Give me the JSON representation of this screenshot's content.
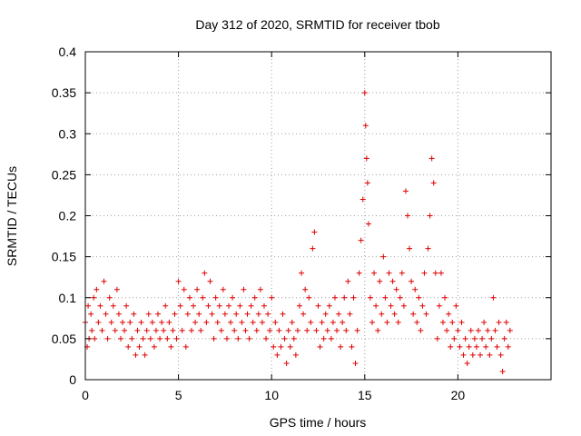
{
  "chart_data": {
    "type": "scatter",
    "title": "Day 312 of 2020, SRMTID for receiver tbob",
    "xlabel": "GPS time / hours",
    "ylabel": "SRMTID / TECUs",
    "xlim": [
      0,
      25
    ],
    "ylim": [
      0,
      0.4
    ],
    "xticks": [
      0,
      5,
      10,
      15,
      20
    ],
    "yticks": [
      0,
      0.05,
      0.1,
      0.15,
      0.2,
      0.25,
      0.3,
      0.35,
      0.4
    ],
    "xtick_labels": [
      "0",
      "5",
      "10",
      "15",
      "20"
    ],
    "ytick_labels": [
      "0",
      "0.05",
      "0.1",
      "0.15",
      "0.2",
      "0.25",
      "0.3",
      "0.35",
      "0.4"
    ],
    "grid": true,
    "marker": "+",
    "color": "#e00000",
    "series": [
      {
        "name": "SRMTID",
        "points": [
          [
            0.0,
            0.07
          ],
          [
            0.1,
            0.04
          ],
          [
            0.15,
            0.09
          ],
          [
            0.2,
            0.05
          ],
          [
            0.3,
            0.08
          ],
          [
            0.35,
            0.06
          ],
          [
            0.45,
            0.1
          ],
          [
            0.5,
            0.05
          ],
          [
            0.6,
            0.11
          ],
          [
            0.7,
            0.07
          ],
          [
            0.8,
            0.09
          ],
          [
            0.9,
            0.06
          ],
          [
            1.0,
            0.12
          ],
          [
            1.1,
            0.08
          ],
          [
            1.2,
            0.05
          ],
          [
            1.3,
            0.1
          ],
          [
            1.4,
            0.07
          ],
          [
            1.5,
            0.09
          ],
          [
            1.6,
            0.06
          ],
          [
            1.7,
            0.11
          ],
          [
            1.8,
            0.08
          ],
          [
            1.9,
            0.05
          ],
          [
            2.0,
            0.07
          ],
          [
            2.1,
            0.06
          ],
          [
            2.2,
            0.09
          ],
          [
            2.3,
            0.04
          ],
          [
            2.4,
            0.07
          ],
          [
            2.5,
            0.05
          ],
          [
            2.6,
            0.08
          ],
          [
            2.7,
            0.03
          ],
          [
            2.8,
            0.06
          ],
          [
            2.9,
            0.04
          ],
          [
            3.0,
            0.07
          ],
          [
            3.1,
            0.05
          ],
          [
            3.2,
            0.03
          ],
          [
            3.3,
            0.06
          ],
          [
            3.4,
            0.08
          ],
          [
            3.5,
            0.05
          ],
          [
            3.6,
            0.07
          ],
          [
            3.7,
            0.04
          ],
          [
            3.8,
            0.06
          ],
          [
            3.9,
            0.08
          ],
          [
            4.0,
            0.05
          ],
          [
            4.1,
            0.07
          ],
          [
            4.2,
            0.06
          ],
          [
            4.3,
            0.09
          ],
          [
            4.4,
            0.05
          ],
          [
            4.5,
            0.07
          ],
          [
            4.6,
            0.04
          ],
          [
            4.7,
            0.06
          ],
          [
            4.8,
            0.08
          ],
          [
            4.9,
            0.05
          ],
          [
            5.0,
            0.12
          ],
          [
            5.1,
            0.09
          ],
          [
            5.2,
            0.06
          ],
          [
            5.3,
            0.11
          ],
          [
            5.4,
            0.04
          ],
          [
            5.5,
            0.08
          ],
          [
            5.6,
            0.1
          ],
          [
            5.7,
            0.06
          ],
          [
            5.8,
            0.09
          ],
          [
            5.9,
            0.07
          ],
          [
            6.0,
            0.11
          ],
          [
            6.1,
            0.08
          ],
          [
            6.2,
            0.06
          ],
          [
            6.3,
            0.1
          ],
          [
            6.4,
            0.13
          ],
          [
            6.5,
            0.07
          ],
          [
            6.6,
            0.09
          ],
          [
            6.7,
            0.12
          ],
          [
            6.8,
            0.08
          ],
          [
            6.9,
            0.05
          ],
          [
            7.0,
            0.1
          ],
          [
            7.1,
            0.07
          ],
          [
            7.2,
            0.09
          ],
          [
            7.3,
            0.06
          ],
          [
            7.4,
            0.11
          ],
          [
            7.5,
            0.08
          ],
          [
            7.6,
            0.05
          ],
          [
            7.7,
            0.09
          ],
          [
            7.8,
            0.07
          ],
          [
            7.9,
            0.1
          ],
          [
            8.0,
            0.06
          ],
          [
            8.1,
            0.08
          ],
          [
            8.2,
            0.05
          ],
          [
            8.3,
            0.09
          ],
          [
            8.4,
            0.07
          ],
          [
            8.5,
            0.11
          ],
          [
            8.6,
            0.06
          ],
          [
            8.7,
            0.08
          ],
          [
            8.8,
            0.05
          ],
          [
            8.9,
            0.09
          ],
          [
            9.0,
            0.07
          ],
          [
            9.1,
            0.1
          ],
          [
            9.2,
            0.06
          ],
          [
            9.3,
            0.08
          ],
          [
            9.4,
            0.11
          ],
          [
            9.5,
            0.07
          ],
          [
            9.6,
            0.09
          ],
          [
            9.7,
            0.05
          ],
          [
            9.8,
            0.08
          ],
          [
            9.9,
            0.06
          ],
          [
            10.0,
            0.1
          ],
          [
            10.1,
            0.04
          ],
          [
            10.2,
            0.07
          ],
          [
            10.3,
            0.03
          ],
          [
            10.4,
            0.06
          ],
          [
            10.5,
            0.04
          ],
          [
            10.6,
            0.08
          ],
          [
            10.7,
            0.05
          ],
          [
            10.8,
            0.02
          ],
          [
            10.9,
            0.06
          ],
          [
            11.0,
            0.04
          ],
          [
            11.1,
            0.07
          ],
          [
            11.2,
            0.05
          ],
          [
            11.3,
            0.03
          ],
          [
            11.4,
            0.06
          ],
          [
            11.5,
            0.09
          ],
          [
            11.6,
            0.13
          ],
          [
            11.7,
            0.08
          ],
          [
            11.8,
            0.11
          ],
          [
            11.9,
            0.06
          ],
          [
            12.0,
            0.1
          ],
          [
            12.1,
            0.07
          ],
          [
            12.2,
            0.16
          ],
          [
            12.3,
            0.18
          ],
          [
            12.4,
            0.06
          ],
          [
            12.5,
            0.09
          ],
          [
            12.6,
            0.04
          ],
          [
            12.7,
            0.07
          ],
          [
            12.8,
            0.05
          ],
          [
            12.9,
            0.08
          ],
          [
            13.0,
            0.06
          ],
          [
            13.1,
            0.09
          ],
          [
            13.2,
            0.05
          ],
          [
            13.3,
            0.07
          ],
          [
            13.4,
            0.1
          ],
          [
            13.5,
            0.06
          ],
          [
            13.6,
            0.08
          ],
          [
            13.7,
            0.04
          ],
          [
            13.8,
            0.07
          ],
          [
            13.9,
            0.1
          ],
          [
            14.0,
            0.06
          ],
          [
            14.1,
            0.12
          ],
          [
            14.2,
            0.08
          ],
          [
            14.3,
            0.04
          ],
          [
            14.4,
            0.1
          ],
          [
            14.5,
            0.02
          ],
          [
            14.6,
            0.06
          ],
          [
            14.7,
            0.13
          ],
          [
            14.8,
            0.17
          ],
          [
            14.9,
            0.22
          ],
          [
            15.0,
            0.35
          ],
          [
            15.05,
            0.31
          ],
          [
            15.1,
            0.27
          ],
          [
            15.15,
            0.24
          ],
          [
            15.2,
            0.19
          ],
          [
            15.3,
            0.1
          ],
          [
            15.4,
            0.07
          ],
          [
            15.5,
            0.13
          ],
          [
            15.6,
            0.09
          ],
          [
            15.7,
            0.06
          ],
          [
            15.8,
            0.12
          ],
          [
            15.9,
            0.08
          ],
          [
            16.0,
            0.15
          ],
          [
            16.1,
            0.1
          ],
          [
            16.2,
            0.07
          ],
          [
            16.3,
            0.13
          ],
          [
            16.4,
            0.09
          ],
          [
            16.5,
            0.12
          ],
          [
            16.6,
            0.08
          ],
          [
            16.7,
            0.11
          ],
          [
            16.8,
            0.07
          ],
          [
            16.9,
            0.1
          ],
          [
            17.0,
            0.13
          ],
          [
            17.1,
            0.09
          ],
          [
            17.2,
            0.23
          ],
          [
            17.3,
            0.2
          ],
          [
            17.4,
            0.16
          ],
          [
            17.5,
            0.12
          ],
          [
            17.6,
            0.08
          ],
          [
            17.7,
            0.11
          ],
          [
            17.8,
            0.07
          ],
          [
            17.9,
            0.1
          ],
          [
            18.0,
            0.06
          ],
          [
            18.1,
            0.09
          ],
          [
            18.2,
            0.13
          ],
          [
            18.3,
            0.08
          ],
          [
            18.4,
            0.16
          ],
          [
            18.5,
            0.2
          ],
          [
            18.6,
            0.27
          ],
          [
            18.7,
            0.24
          ],
          [
            18.8,
            0.13
          ],
          [
            18.9,
            0.05
          ],
          [
            19.0,
            0.09
          ],
          [
            19.1,
            0.13
          ],
          [
            19.2,
            0.07
          ],
          [
            19.3,
            0.1
          ],
          [
            19.4,
            0.06
          ],
          [
            19.5,
            0.08
          ],
          [
            19.6,
            0.04
          ],
          [
            19.7,
            0.07
          ],
          [
            19.8,
            0.05
          ],
          [
            19.9,
            0.09
          ],
          [
            20.0,
            0.06
          ],
          [
            20.1,
            0.04
          ],
          [
            20.2,
            0.07
          ],
          [
            20.3,
            0.03
          ],
          [
            20.4,
            0.05
          ],
          [
            20.5,
            0.02
          ],
          [
            20.6,
            0.04
          ],
          [
            20.7,
            0.06
          ],
          [
            20.8,
            0.03
          ],
          [
            20.9,
            0.05
          ],
          [
            21.0,
            0.04
          ],
          [
            21.1,
            0.06
          ],
          [
            21.2,
            0.03
          ],
          [
            21.3,
            0.05
          ],
          [
            21.4,
            0.07
          ],
          [
            21.5,
            0.04
          ],
          [
            21.6,
            0.06
          ],
          [
            21.7,
            0.03
          ],
          [
            21.8,
            0.05
          ],
          [
            21.9,
            0.1
          ],
          [
            22.0,
            0.06
          ],
          [
            22.1,
            0.04
          ],
          [
            22.2,
            0.07
          ],
          [
            22.3,
            0.03
          ],
          [
            22.4,
            0.01
          ],
          [
            22.5,
            0.05
          ],
          [
            22.6,
            0.07
          ],
          [
            22.7,
            0.04
          ],
          [
            22.8,
            0.06
          ]
        ]
      }
    ]
  }
}
